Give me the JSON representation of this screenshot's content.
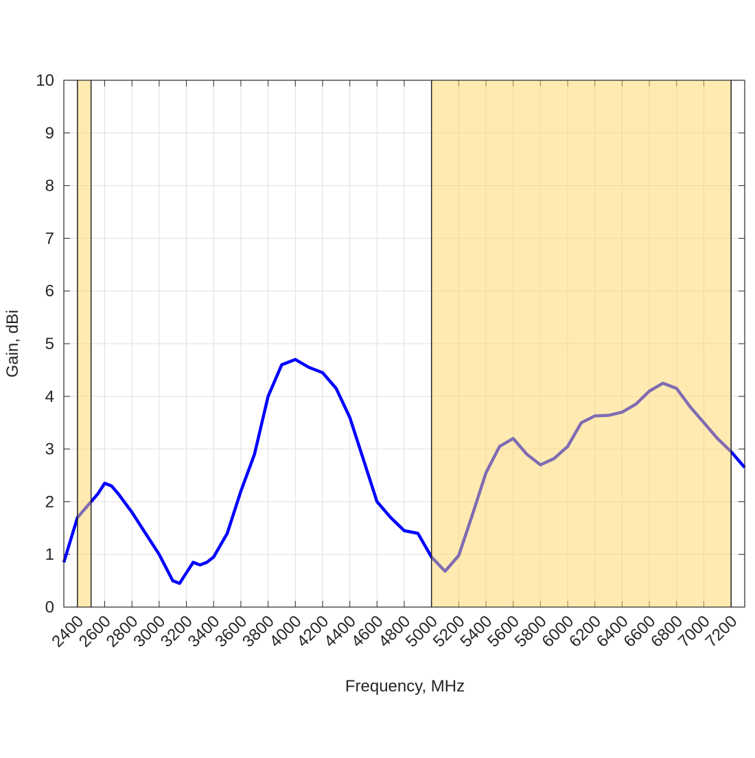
{
  "chart_data": {
    "type": "line",
    "x_label": "Frequency, MHz",
    "y_label": "Gain, dBi",
    "x": [
      2300,
      2400,
      2500,
      2550,
      2600,
      2650,
      2700,
      2800,
      2900,
      3000,
      3100,
      3150,
      3200,
      3250,
      3300,
      3350,
      3400,
      3500,
      3600,
      3700,
      3800,
      3900,
      4000,
      4100,
      4200,
      4300,
      4400,
      4500,
      4600,
      4700,
      4800,
      4900,
      5000,
      5100,
      5200,
      5300,
      5400,
      5500,
      5600,
      5700,
      5800,
      5900,
      6000,
      6100,
      6200,
      6300,
      6400,
      6500,
      6600,
      6700,
      6800,
      6900,
      7000,
      7100,
      7200,
      7300
    ],
    "series": [
      {
        "color": "#0000ff",
        "values": [
          0.85,
          1.7,
          2.0,
          2.15,
          2.35,
          2.3,
          2.15,
          1.8,
          1.4,
          1.0,
          0.5,
          0.45,
          0.65,
          0.85,
          0.8,
          0.85,
          0.95,
          1.4,
          2.2,
          2.9,
          4.0,
          4.6,
          4.7,
          4.55,
          4.45,
          4.15,
          3.6,
          2.8,
          2.0,
          1.7,
          1.45,
          1.4,
          0.95,
          0.68,
          0.98,
          1.75,
          2.55,
          3.05,
          3.2,
          2.9,
          2.7,
          2.82,
          3.05,
          3.5,
          3.63,
          3.64,
          3.7,
          3.85,
          4.1,
          4.25,
          4.15,
          3.8,
          3.5,
          3.2,
          2.95,
          2.65
        ]
      }
    ],
    "shaded_bands": [
      [
        2400,
        2500
      ],
      [
        5000,
        7200
      ]
    ],
    "band_color": "#ffd866",
    "xlim": [
      2300,
      7300
    ],
    "ylim": [
      0,
      10
    ],
    "xticks": [
      2400,
      2600,
      2800,
      3000,
      3200,
      3400,
      3600,
      3800,
      4000,
      4200,
      4400,
      4600,
      4800,
      5000,
      5200,
      5400,
      5600,
      5800,
      6000,
      6200,
      6400,
      6600,
      6800,
      7000,
      7200
    ],
    "yticks": [
      0,
      1,
      2,
      3,
      4,
      5,
      6,
      7,
      8,
      9,
      10
    ],
    "grid": true
  }
}
